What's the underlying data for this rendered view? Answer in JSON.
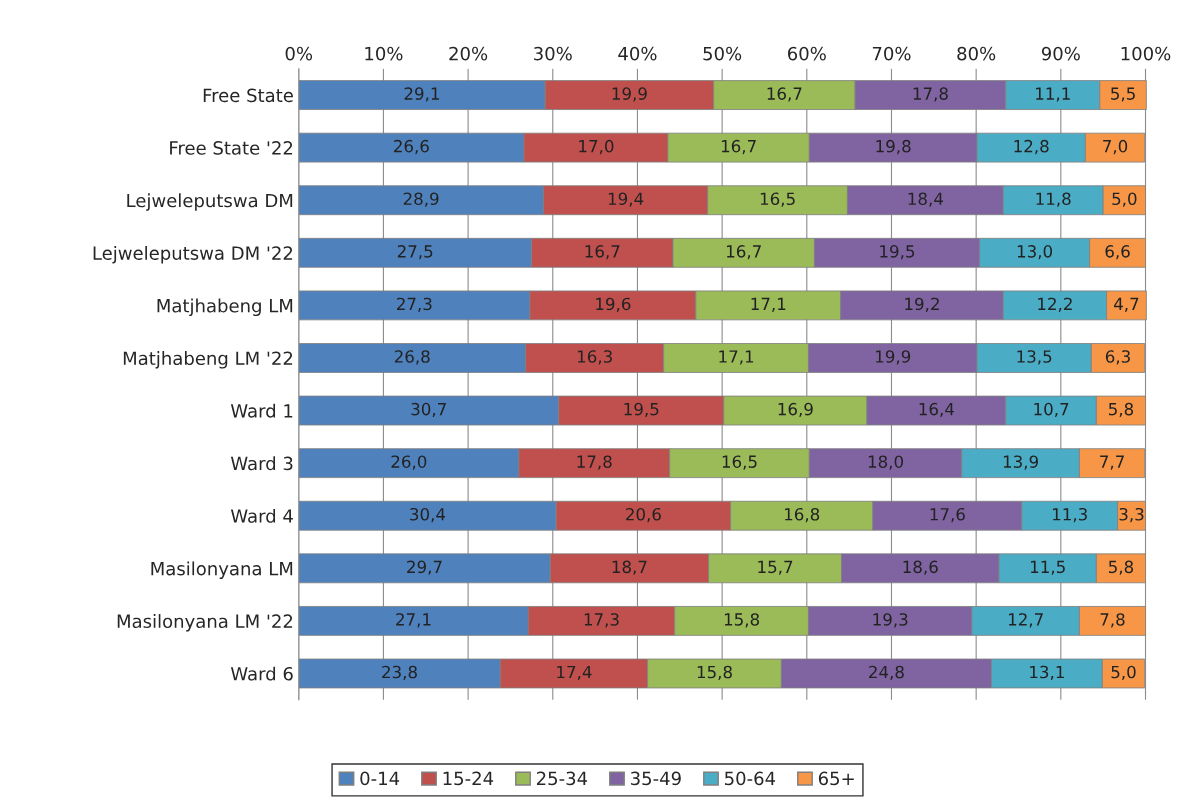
{
  "chart_data": {
    "type": "bar",
    "orientation": "horizontal",
    "stacked": true,
    "categories": [
      "Free State",
      "Free State '22",
      "Lejweleputswa DM",
      "Lejweleputswa DM '22",
      "Matjhabeng LM",
      "Matjhabeng LM '22",
      "Ward 1",
      "Ward 3",
      "Ward 4",
      "Masilonyana LM",
      "Masilonyana LM '22",
      "Ward 6"
    ],
    "series": [
      {
        "name": "0-14",
        "color": "#4f81bd",
        "values": [
          29.1,
          26.6,
          28.9,
          27.5,
          27.3,
          26.8,
          30.7,
          26.0,
          30.4,
          29.7,
          27.1,
          23.8
        ],
        "value_labels": [
          "29,1",
          "26,6",
          "28,9",
          "27,5",
          "27,3",
          "26,8",
          "30,7",
          "26,0",
          "30,4",
          "29,7",
          "27,1",
          "23,8"
        ]
      },
      {
        "name": "15-24",
        "color": "#c0504d",
        "values": [
          19.9,
          17.0,
          19.4,
          16.7,
          19.6,
          16.3,
          19.5,
          17.8,
          20.6,
          18.7,
          17.3,
          17.4
        ],
        "value_labels": [
          "19,9",
          "17,0",
          "19,4",
          "16,7",
          "19,6",
          "16,3",
          "19,5",
          "17,8",
          "20,6",
          "18,7",
          "17,3",
          "17,4"
        ]
      },
      {
        "name": "25-34",
        "color": "#9bbb59",
        "values": [
          16.7,
          16.7,
          16.5,
          16.7,
          17.1,
          17.1,
          16.9,
          16.5,
          16.8,
          15.7,
          15.8,
          15.8
        ],
        "value_labels": [
          "16,7",
          "16,7",
          "16,5",
          "16,7",
          "17,1",
          "17,1",
          "16,9",
          "16,5",
          "16,8",
          "15,7",
          "15,8",
          "15,8"
        ]
      },
      {
        "name": "35-49",
        "color": "#8064a2",
        "values": [
          17.8,
          19.8,
          18.4,
          19.5,
          19.2,
          19.9,
          16.4,
          18.0,
          17.6,
          18.6,
          19.3,
          24.8
        ],
        "value_labels": [
          "17,8",
          "19,8",
          "18,4",
          "19,5",
          "19,2",
          "19,9",
          "16,4",
          "18,0",
          "17,6",
          "18,6",
          "19,3",
          "24,8"
        ]
      },
      {
        "name": "50-64",
        "color": "#4bacc6",
        "values": [
          11.1,
          12.8,
          11.8,
          13.0,
          12.2,
          13.5,
          10.7,
          13.9,
          11.3,
          11.5,
          12.7,
          13.1
        ],
        "value_labels": [
          "11,1",
          "12,8",
          "11,8",
          "13,0",
          "12,2",
          "13,5",
          "10,7",
          "13,9",
          "11,3",
          "11,5",
          "12,7",
          "13,1"
        ]
      },
      {
        "name": "65+",
        "color": "#f79646",
        "values": [
          5.5,
          7.0,
          5.0,
          6.6,
          4.7,
          6.3,
          5.8,
          7.7,
          3.3,
          5.8,
          7.8,
          5.0
        ],
        "value_labels": [
          "5,5",
          "7,0",
          "5,0",
          "6,6",
          "4,7",
          "6,3",
          "5,8",
          "7,7",
          "3,3",
          "5,8",
          "7,8",
          "5,0"
        ]
      }
    ],
    "xlim": [
      0,
      100.2
    ],
    "xticks": [
      {
        "value": 0,
        "label": "0%"
      },
      {
        "value": 10,
        "label": "10%"
      },
      {
        "value": 20,
        "label": "20%"
      },
      {
        "value": 30,
        "label": "30%"
      },
      {
        "value": 40,
        "label": "40%"
      },
      {
        "value": 50,
        "label": "50%"
      },
      {
        "value": 60,
        "label": "60%"
      },
      {
        "value": 70,
        "label": "70%"
      },
      {
        "value": 80,
        "label": "80%"
      },
      {
        "value": 90,
        "label": "90%"
      },
      {
        "value": 100,
        "label": "100%"
      }
    ],
    "grid": "x",
    "legend": "bottom"
  }
}
